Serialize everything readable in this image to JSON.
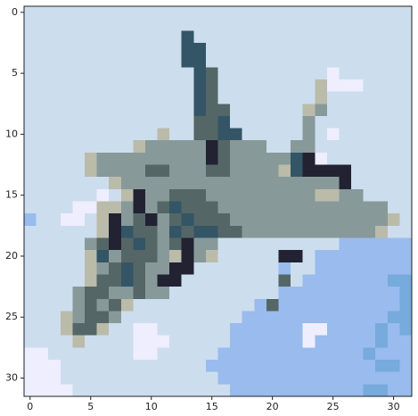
{
  "chart_data": {
    "type": "image",
    "xlim": [
      -0.5,
      31.5
    ],
    "ylim": [
      31.5,
      -0.5
    ],
    "xticks": [
      0,
      5,
      10,
      15,
      20,
      25,
      30
    ],
    "yticks": [
      0,
      5,
      10,
      15,
      20,
      25,
      30
    ],
    "pixels": [
      [
        "#cde",
        "#cde",
        "#cde",
        "#cde",
        "#cde",
        "#cde",
        "#cde",
        "#cde",
        "#cde",
        "#cde",
        "#cde",
        "#cde",
        "#cde",
        "#cde",
        "#cde",
        "#cde",
        "#cde",
        "#cde",
        "#cde",
        "#cde",
        "#cde",
        "#cde",
        "#cde",
        "#cde",
        "#cde",
        "#cde",
        "#cde",
        "#cde",
        "#cde",
        "#cde",
        "#cde",
        "#cde"
      ],
      [
        "#cde",
        "#cde",
        "#cde",
        "#cde",
        "#cde",
        "#cde",
        "#cde",
        "#cde",
        "#cde",
        "#cde",
        "#cde",
        "#cde",
        "#cde",
        "#cde",
        "#cde",
        "#cde",
        "#cde",
        "#cde",
        "#cde",
        "#cde",
        "#cde",
        "#cde",
        "#cde",
        "#cde",
        "#cde",
        "#cde",
        "#cde",
        "#cde",
        "#cde",
        "#cde",
        "#cde",
        "#cde"
      ],
      [
        "#cde",
        "#cde",
        "#cde",
        "#cde",
        "#cde",
        "#cde",
        "#cde",
        "#cde",
        "#cde",
        "#cde",
        "#cde",
        "#cde",
        "#cde",
        "#356",
        "#cde",
        "#cde",
        "#cde",
        "#cde",
        "#cde",
        "#cde",
        "#cde",
        "#cde",
        "#cde",
        "#cde",
        "#cde",
        "#cde",
        "#cde",
        "#cde",
        "#cde",
        "#cde",
        "#cde",
        "#cde"
      ],
      [
        "#cde",
        "#cde",
        "#cde",
        "#cde",
        "#cde",
        "#cde",
        "#cde",
        "#cde",
        "#cde",
        "#cde",
        "#cde",
        "#cde",
        "#cde",
        "#356",
        "#356",
        "#cde",
        "#cde",
        "#cde",
        "#cde",
        "#cde",
        "#cde",
        "#cde",
        "#cde",
        "#cde",
        "#cde",
        "#cde",
        "#cde",
        "#cde",
        "#cde",
        "#cde",
        "#cde",
        "#cde"
      ],
      [
        "#cde",
        "#cde",
        "#cde",
        "#cde",
        "#cde",
        "#cde",
        "#cde",
        "#cde",
        "#cde",
        "#cde",
        "#cde",
        "#cde",
        "#cde",
        "#356",
        "#356",
        "#cde",
        "#cde",
        "#cde",
        "#cde",
        "#cde",
        "#cde",
        "#cde",
        "#cde",
        "#cde",
        "#cde",
        "#cde",
        "#cde",
        "#cde",
        "#cde",
        "#cde",
        "#cde",
        "#cde"
      ],
      [
        "#cde",
        "#cde",
        "#cde",
        "#cde",
        "#cde",
        "#cde",
        "#cde",
        "#cde",
        "#cde",
        "#cde",
        "#cde",
        "#cde",
        "#cde",
        "#cde",
        "#356",
        "#566",
        "#cde",
        "#cde",
        "#cde",
        "#cde",
        "#cde",
        "#cde",
        "#cde",
        "#cde",
        "#cde",
        "#eef",
        "#cde",
        "#cde",
        "#cde",
        "#cde",
        "#cde",
        "#cde"
      ],
      [
        "#cde",
        "#cde",
        "#cde",
        "#cde",
        "#cde",
        "#cde",
        "#cde",
        "#cde",
        "#cde",
        "#cde",
        "#cde",
        "#cde",
        "#cde",
        "#cde",
        "#356",
        "#566",
        "#cde",
        "#cde",
        "#cde",
        "#cde",
        "#cde",
        "#cde",
        "#cde",
        "#cde",
        "#bba",
        "#eef",
        "#eef",
        "#eef",
        "#cde",
        "#cde",
        "#cde",
        "#cde"
      ],
      [
        "#cde",
        "#cde",
        "#cde",
        "#cde",
        "#cde",
        "#cde",
        "#cde",
        "#cde",
        "#cde",
        "#cde",
        "#cde",
        "#cde",
        "#cde",
        "#cde",
        "#356",
        "#566",
        "#cde",
        "#cde",
        "#cde",
        "#cde",
        "#cde",
        "#cde",
        "#cde",
        "#cde",
        "#bba",
        "#cde",
        "#cde",
        "#cde",
        "#cde",
        "#cde",
        "#cde",
        "#cde"
      ],
      [
        "#cde",
        "#cde",
        "#cde",
        "#cde",
        "#cde",
        "#cde",
        "#cde",
        "#cde",
        "#cde",
        "#cde",
        "#cde",
        "#cde",
        "#cde",
        "#cde",
        "#356",
        "#566",
        "#566",
        "#cde",
        "#cde",
        "#cde",
        "#cde",
        "#cde",
        "#cde",
        "#bba",
        "#899",
        "#cde",
        "#cde",
        "#cde",
        "#cde",
        "#cde",
        "#cde",
        "#cde"
      ],
      [
        "#cde",
        "#cde",
        "#cde",
        "#cde",
        "#cde",
        "#cde",
        "#cde",
        "#cde",
        "#cde",
        "#cde",
        "#cde",
        "#cde",
        "#cde",
        "#cde",
        "#566",
        "#566",
        "#356",
        "#cde",
        "#cde",
        "#cde",
        "#cde",
        "#cde",
        "#cde",
        "#899",
        "#cde",
        "#cde",
        "#cde",
        "#cde",
        "#cde",
        "#cde",
        "#cde",
        "#cde"
      ],
      [
        "#cde",
        "#cde",
        "#cde",
        "#cde",
        "#cde",
        "#cde",
        "#cde",
        "#cde",
        "#cde",
        "#cde",
        "#cde",
        "#bba",
        "#cde",
        "#cde",
        "#566",
        "#566",
        "#356",
        "#356",
        "#cde",
        "#cde",
        "#cde",
        "#cde",
        "#cde",
        "#899",
        "#cde",
        "#eef",
        "#cde",
        "#cde",
        "#cde",
        "#cde",
        "#cde",
        "#cde"
      ],
      [
        "#cde",
        "#cde",
        "#cde",
        "#cde",
        "#cde",
        "#cde",
        "#cde",
        "#cde",
        "#cde",
        "#bba",
        "#899",
        "#899",
        "#899",
        "#899",
        "#899",
        "#223",
        "#566",
        "#899",
        "#899",
        "#899",
        "#cde",
        "#cde",
        "#899",
        "#899",
        "#cde",
        "#cde",
        "#cde",
        "#cde",
        "#cde",
        "#cde",
        "#cde",
        "#cde"
      ],
      [
        "#cde",
        "#cde",
        "#cde",
        "#cde",
        "#cde",
        "#bba",
        "#899",
        "#899",
        "#899",
        "#899",
        "#899",
        "#899",
        "#899",
        "#899",
        "#899",
        "#223",
        "#566",
        "#899",
        "#899",
        "#899",
        "#899",
        "#899",
        "#356",
        "#223",
        "#eef",
        "#cde",
        "#cde",
        "#cde",
        "#cde",
        "#cde",
        "#cde",
        "#cde"
      ],
      [
        "#cde",
        "#cde",
        "#cde",
        "#cde",
        "#cde",
        "#bba",
        "#899",
        "#899",
        "#899",
        "#899",
        "#566",
        "#566",
        "#899",
        "#899",
        "#899",
        "#566",
        "#566",
        "#899",
        "#899",
        "#899",
        "#899",
        "#bba",
        "#356",
        "#223",
        "#223",
        "#223",
        "#223",
        "#cde",
        "#cde",
        "#cde",
        "#cde",
        "#cde"
      ],
      [
        "#cde",
        "#cde",
        "#cde",
        "#cde",
        "#cde",
        "#cde",
        "#cde",
        "#bba",
        "#899",
        "#899",
        "#899",
        "#899",
        "#899",
        "#899",
        "#899",
        "#899",
        "#899",
        "#899",
        "#899",
        "#899",
        "#899",
        "#899",
        "#899",
        "#899",
        "#899",
        "#899",
        "#223",
        "#cde",
        "#cde",
        "#cde",
        "#cde",
        "#cde"
      ],
      [
        "#cde",
        "#cde",
        "#cde",
        "#cde",
        "#cde",
        "#cde",
        "#eef",
        "#cde",
        "#bba",
        "#223",
        "#899",
        "#899",
        "#566",
        "#566",
        "#566",
        "#899",
        "#899",
        "#899",
        "#899",
        "#899",
        "#899",
        "#899",
        "#899",
        "#899",
        "#bba",
        "#bba",
        "#899",
        "#899",
        "#cde",
        "#cde",
        "#cde",
        "#cde"
      ],
      [
        "#cde",
        "#cde",
        "#cde",
        "#cde",
        "#eef",
        "#eef",
        "#bba",
        "#bba",
        "#899",
        "#223",
        "#899",
        "#566",
        "#356",
        "#566",
        "#566",
        "#566",
        "#899",
        "#899",
        "#899",
        "#899",
        "#899",
        "#899",
        "#899",
        "#899",
        "#899",
        "#899",
        "#899",
        "#899",
        "#899",
        "#899",
        "#cde",
        "#cde"
      ],
      [
        "#9be",
        "#cde",
        "#cde",
        "#eef",
        "#eef",
        "#cde",
        "#bba",
        "#223",
        "#899",
        "#566",
        "#223",
        "#899",
        "#566",
        "#356",
        "#566",
        "#566",
        "#566",
        "#899",
        "#899",
        "#899",
        "#899",
        "#899",
        "#899",
        "#899",
        "#899",
        "#899",
        "#899",
        "#899",
        "#899",
        "#899",
        "#bba",
        "#cde"
      ],
      [
        "#cde",
        "#cde",
        "#cde",
        "#cde",
        "#cde",
        "#cde",
        "#bba",
        "#223",
        "#356",
        "#566",
        "#566",
        "#899",
        "#356",
        "#566",
        "#356",
        "#356",
        "#566",
        "#566",
        "#899",
        "#899",
        "#899",
        "#899",
        "#899",
        "#899",
        "#899",
        "#899",
        "#899",
        "#899",
        "#899",
        "#bba",
        "#cde",
        "#cde"
      ],
      [
        "#cde",
        "#cde",
        "#cde",
        "#cde",
        "#cde",
        "#899",
        "#566",
        "#223",
        "#566",
        "#356",
        "#566",
        "#899",
        "#566",
        "#223",
        "#899",
        "#899",
        "#cde",
        "#cde",
        "#cde",
        "#cde",
        "#cde",
        "#cde",
        "#cde",
        "#cde",
        "#cde",
        "#cde",
        "#9be",
        "#9be",
        "#9be",
        "#9be",
        "#9be",
        "#9be"
      ],
      [
        "#cde",
        "#cde",
        "#cde",
        "#cde",
        "#cde",
        "#bba",
        "#356",
        "#899",
        "#566",
        "#566",
        "#566",
        "#899",
        "#bba",
        "#223",
        "#899",
        "#bba",
        "#cde",
        "#cde",
        "#cde",
        "#cde",
        "#cde",
        "#223",
        "#223",
        "#cde",
        "#9be",
        "#9be",
        "#9be",
        "#9be",
        "#9be",
        "#9be",
        "#9be",
        "#9be"
      ],
      [
        "#cde",
        "#cde",
        "#cde",
        "#cde",
        "#cde",
        "#bba",
        "#899",
        "#566",
        "#356",
        "#566",
        "#899",
        "#899",
        "#223",
        "#223",
        "#cde",
        "#cde",
        "#cde",
        "#cde",
        "#cde",
        "#cde",
        "#cde",
        "#9be",
        "#cde",
        "#cde",
        "#9be",
        "#9be",
        "#9be",
        "#9be",
        "#9be",
        "#9be",
        "#9be",
        "#9be"
      ],
      [
        "#cde",
        "#cde",
        "#cde",
        "#cde",
        "#cde",
        "#bba",
        "#566",
        "#566",
        "#356",
        "#566",
        "#899",
        "#223",
        "#223",
        "#cde",
        "#cde",
        "#cde",
        "#cde",
        "#cde",
        "#cde",
        "#cde",
        "#cde",
        "#566",
        "#cde",
        "#9be",
        "#9be",
        "#9be",
        "#9be",
        "#9be",
        "#9be",
        "#9be",
        "#7ad",
        "#7ad"
      ],
      [
        "#cde",
        "#cde",
        "#cde",
        "#cde",
        "#899",
        "#566",
        "#566",
        "#899",
        "#899",
        "#566",
        "#899",
        "#899",
        "#cde",
        "#cde",
        "#cde",
        "#cde",
        "#cde",
        "#cde",
        "#cde",
        "#cde",
        "#cde",
        "#9be",
        "#9be",
        "#9be",
        "#9be",
        "#9be",
        "#9be",
        "#9be",
        "#9be",
        "#9be",
        "#9be",
        "#7ad"
      ],
      [
        "#cde",
        "#cde",
        "#cde",
        "#cde",
        "#899",
        "#566",
        "#899",
        "#566",
        "#bba",
        "#cde",
        "#cde",
        "#cde",
        "#cde",
        "#cde",
        "#cde",
        "#cde",
        "#cde",
        "#cde",
        "#cde",
        "#9be",
        "#566",
        "#9be",
        "#9be",
        "#9be",
        "#9be",
        "#9be",
        "#9be",
        "#9be",
        "#9be",
        "#9be",
        "#9be",
        "#7ad"
      ],
      [
        "#cde",
        "#cde",
        "#cde",
        "#bba",
        "#899",
        "#566",
        "#566",
        "#899",
        "#cde",
        "#cde",
        "#cde",
        "#cde",
        "#cde",
        "#cde",
        "#cde",
        "#cde",
        "#cde",
        "#cde",
        "#9be",
        "#9be",
        "#9be",
        "#9be",
        "#9be",
        "#9be",
        "#9be",
        "#9be",
        "#9be",
        "#9be",
        "#9be",
        "#9be",
        "#7ad",
        "#7ad"
      ],
      [
        "#cde",
        "#cde",
        "#cde",
        "#bba",
        "#566",
        "#566",
        "#bba",
        "#cde",
        "#cde",
        "#eef",
        "#eef",
        "#cde",
        "#cde",
        "#cde",
        "#cde",
        "#cde",
        "#cde",
        "#9be",
        "#9be",
        "#9be",
        "#9be",
        "#9be",
        "#9be",
        "#eef",
        "#eef",
        "#9be",
        "#9be",
        "#9be",
        "#9be",
        "#7ad",
        "#9be",
        "#7ad"
      ],
      [
        "#cde",
        "#cde",
        "#cde",
        "#cde",
        "#bba",
        "#cde",
        "#cde",
        "#cde",
        "#cde",
        "#eef",
        "#eef",
        "#eef",
        "#cde",
        "#cde",
        "#cde",
        "#cde",
        "#cde",
        "#9be",
        "#9be",
        "#9be",
        "#9be",
        "#9be",
        "#9be",
        "#eef",
        "#9be",
        "#9be",
        "#9be",
        "#9be",
        "#9be",
        "#7ad",
        "#9be",
        "#9be"
      ],
      [
        "#eef",
        "#eef",
        "#cde",
        "#cde",
        "#cde",
        "#cde",
        "#cde",
        "#cde",
        "#cde",
        "#eef",
        "#eef",
        "#cde",
        "#cde",
        "#cde",
        "#cde",
        "#cde",
        "#9be",
        "#9be",
        "#9be",
        "#9be",
        "#9be",
        "#9be",
        "#9be",
        "#9be",
        "#9be",
        "#9be",
        "#9be",
        "#9be",
        "#7ad",
        "#9be",
        "#9be",
        "#9be"
      ],
      [
        "#eef",
        "#eef",
        "#eef",
        "#cde",
        "#cde",
        "#cde",
        "#cde",
        "#cde",
        "#cde",
        "#cde",
        "#cde",
        "#cde",
        "#cde",
        "#cde",
        "#cde",
        "#9be",
        "#9be",
        "#9be",
        "#9be",
        "#9be",
        "#9be",
        "#9be",
        "#9be",
        "#9be",
        "#9be",
        "#9be",
        "#9be",
        "#9be",
        "#9be",
        "#7ad",
        "#7ad",
        "#9be"
      ],
      [
        "#eef",
        "#eef",
        "#eef",
        "#cde",
        "#cde",
        "#cde",
        "#cde",
        "#cde",
        "#cde",
        "#cde",
        "#cde",
        "#cde",
        "#cde",
        "#cde",
        "#cde",
        "#cde",
        "#9be",
        "#9be",
        "#9be",
        "#9be",
        "#9be",
        "#9be",
        "#9be",
        "#9be",
        "#9be",
        "#9be",
        "#9be",
        "#9be",
        "#9be",
        "#9be",
        "#9be",
        "#9be"
      ],
      [
        "#eef",
        "#eef",
        "#eef",
        "#eef",
        "#cde",
        "#cde",
        "#cde",
        "#cde",
        "#cde",
        "#cde",
        "#cde",
        "#cde",
        "#cde",
        "#cde",
        "#cde",
        "#cde",
        "#cde",
        "#9be",
        "#9be",
        "#9be",
        "#9be",
        "#9be",
        "#9be",
        "#9be",
        "#9be",
        "#9be",
        "#9be",
        "#9be",
        "#7ad",
        "#7ad",
        "#9be",
        "#9be"
      ]
    ]
  }
}
